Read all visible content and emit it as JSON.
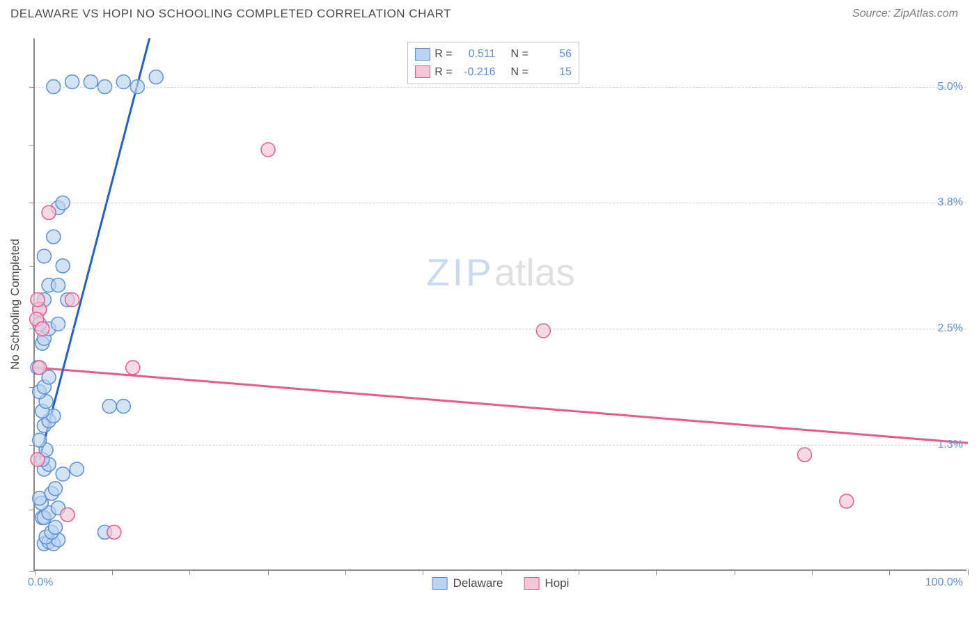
{
  "header": {
    "title": "DELAWARE VS HOPI NO SCHOOLING COMPLETED CORRELATION CHART",
    "source": "Source: ZipAtlas.com"
  },
  "watermark": {
    "part1": "ZIP",
    "part2": "atlas"
  },
  "chart": {
    "type": "scatter",
    "y_axis_label": "No Schooling Completed",
    "xlim": [
      0,
      100
    ],
    "ylim": [
      0,
      5.5
    ],
    "x_origin_label": "0.0%",
    "x_max_label": "100.0%",
    "x_ticks": [
      0,
      8.3,
      16.6,
      25,
      33.3,
      41.6,
      50,
      58.3,
      66.6,
      75,
      83.3,
      91.6,
      100
    ],
    "y_ticks_minor": [
      0,
      0.63,
      1.3,
      1.9,
      2.5,
      3.15,
      3.8,
      4.4,
      5.0
    ],
    "y_gridlines": [
      1.3,
      2.5,
      3.8,
      5.0
    ],
    "y_tick_labels": [
      "1.3%",
      "2.5%",
      "3.8%",
      "5.0%"
    ],
    "background_color": "#ffffff",
    "grid_color": "#d0d0d0",
    "axis_color": "#8a8a8a",
    "label_fontsize": 17,
    "tick_label_color": "#5b8fd6",
    "series": {
      "delaware": {
        "label": "Delaware",
        "fill_color": "#b8d4f0",
        "stroke_color": "#5b8fd6",
        "fill_opacity": 0.65,
        "marker_radius": 10,
        "regression": {
          "x1": 0.5,
          "y1": 1.15,
          "x2": 15,
          "y2": 6.5,
          "color": "#2060d0",
          "width": 3
        },
        "R": "0.511",
        "N": "56",
        "points": [
          [
            1.0,
            0.28
          ],
          [
            1.5,
            0.3
          ],
          [
            2.0,
            0.28
          ],
          [
            2.5,
            0.32
          ],
          [
            1.2,
            0.35
          ],
          [
            1.8,
            0.4
          ],
          [
            2.2,
            0.45
          ],
          [
            0.8,
            0.55
          ],
          [
            1.0,
            0.55
          ],
          [
            1.5,
            0.6
          ],
          [
            2.5,
            0.65
          ],
          [
            7.5,
            0.4
          ],
          [
            3.0,
            1.0
          ],
          [
            4.5,
            1.05
          ],
          [
            1.0,
            1.05
          ],
          [
            1.5,
            1.1
          ],
          [
            0.8,
            1.15
          ],
          [
            1.2,
            1.25
          ],
          [
            0.5,
            1.35
          ],
          [
            1.0,
            1.5
          ],
          [
            1.5,
            1.55
          ],
          [
            2.0,
            1.6
          ],
          [
            0.8,
            1.65
          ],
          [
            1.2,
            1.75
          ],
          [
            8.0,
            1.7
          ],
          [
            9.5,
            1.7
          ],
          [
            0.5,
            1.85
          ],
          [
            1.0,
            1.9
          ],
          [
            1.5,
            2.0
          ],
          [
            0.3,
            2.1
          ],
          [
            0.8,
            2.35
          ],
          [
            1.0,
            2.4
          ],
          [
            1.5,
            2.5
          ],
          [
            2.5,
            2.55
          ],
          [
            0.5,
            2.7
          ],
          [
            1.0,
            2.8
          ],
          [
            3.5,
            2.8
          ],
          [
            1.5,
            2.95
          ],
          [
            2.5,
            2.95
          ],
          [
            3.0,
            3.15
          ],
          [
            1.0,
            3.25
          ],
          [
            2.0,
            3.45
          ],
          [
            2.5,
            3.75
          ],
          [
            3.0,
            3.8
          ],
          [
            2.0,
            5.0
          ],
          [
            4.0,
            5.05
          ],
          [
            6.0,
            5.05
          ],
          [
            7.5,
            5.0
          ],
          [
            9.5,
            5.05
          ],
          [
            11.0,
            5.0
          ],
          [
            13.0,
            5.1
          ],
          [
            0.7,
            0.7
          ],
          [
            0.5,
            0.75
          ],
          [
            1.8,
            0.8
          ],
          [
            2.2,
            0.85
          ],
          [
            0.5,
            2.55
          ]
        ]
      },
      "hopi": {
        "label": "Hopi",
        "fill_color": "#f5c6d6",
        "stroke_color": "#e85a8a",
        "fill_opacity": 0.65,
        "marker_radius": 10,
        "regression": {
          "x1": 0,
          "y1": 2.1,
          "x2": 100,
          "y2": 1.32,
          "color": "#e85a8a",
          "width": 3
        },
        "R": "-0.216",
        "N": "15",
        "points": [
          [
            0.5,
            2.7
          ],
          [
            0.3,
            2.8
          ],
          [
            0.2,
            2.6
          ],
          [
            1.5,
            3.7
          ],
          [
            4.0,
            2.8
          ],
          [
            10.5,
            2.1
          ],
          [
            25.0,
            4.35
          ],
          [
            54.5,
            2.48
          ],
          [
            82.5,
            1.2
          ],
          [
            87.0,
            0.72
          ],
          [
            8.5,
            0.4
          ],
          [
            3.5,
            0.58
          ],
          [
            0.3,
            1.15
          ],
          [
            0.5,
            2.1
          ],
          [
            0.8,
            2.5
          ]
        ]
      }
    },
    "legend": {
      "R_label": "R =",
      "N_label": "N ="
    }
  }
}
